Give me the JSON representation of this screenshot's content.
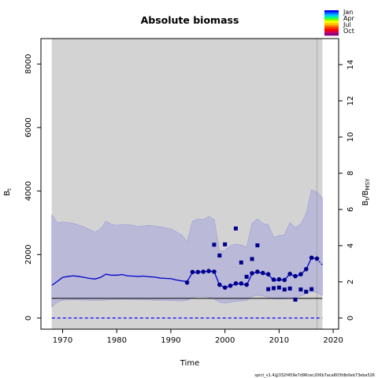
{
  "chart_data": {
    "type": "line",
    "title": "Absolute biomass",
    "xlabel": "Time",
    "ylabel_left": "B_t",
    "ylabel_left_main": "B",
    "ylabel_left_sub": "t",
    "ylabel_right": "B_t/B_MSY",
    "ylabel_right_main_1": "B",
    "ylabel_right_sub_1": "t",
    "ylabel_right_main_2": "/B",
    "ylabel_right_sub_2": "MSY",
    "xlim": [
      1966,
      2021
    ],
    "ylim_left": [
      -350,
      8800
    ],
    "ylim_right_ratio_per_unit": 570,
    "x_ticks": [
      1970,
      1980,
      1990,
      2000,
      2010,
      2020
    ],
    "y_ticks_left": [
      0,
      2000,
      4000,
      6000,
      8000
    ],
    "y_ticks_right": [
      0,
      2,
      4,
      6,
      8,
      10,
      12,
      14
    ],
    "shaded_region": {
      "from": 1968,
      "to": 2018,
      "color": "#d3d3d3"
    },
    "current_time_line": 2017,
    "confidence_band": {
      "x": [
        1968,
        1969,
        1970,
        1972,
        1974,
        1976,
        1977,
        1978,
        1979,
        1980,
        1982,
        1984,
        1986,
        1988,
        1990,
        1992,
        1993,
        1994,
        1995,
        1996,
        1997,
        1998,
        1999,
        2000,
        2001,
        2002,
        2003,
        2004,
        2005,
        2006,
        2007,
        2008,
        2009,
        2010,
        2011,
        2012,
        2013,
        2014,
        2015,
        2016,
        2017,
        2018
      ],
      "upper": [
        3250,
        3000,
        3030,
        2980,
        2870,
        2700,
        2800,
        3050,
        2950,
        2920,
        2950,
        2880,
        2920,
        2870,
        2810,
        2620,
        2400,
        3050,
        3120,
        3100,
        3200,
        3100,
        2100,
        2130,
        2280,
        2330,
        2300,
        2230,
        2980,
        3120,
        2980,
        2940,
        2540,
        2600,
        2620,
        3000,
        2850,
        2960,
        3280,
        4040,
        3960,
        3780
      ],
      "lower": [
        350,
        500,
        560,
        580,
        570,
        560,
        560,
        570,
        580,
        590,
        590,
        580,
        570,
        560,
        550,
        540,
        560,
        650,
        680,
        680,
        660,
        600,
        500,
        470,
        500,
        530,
        540,
        560,
        680,
        720,
        700,
        650,
        600,
        600,
        600,
        620,
        650,
        700,
        760,
        850,
        800,
        720
      ]
    },
    "series": [
      {
        "type": "line",
        "color": "#0000cd",
        "x": [
          1968,
          1969,
          1970,
          1971,
          1972,
          1973,
          1974,
          1975,
          1976,
          1977,
          1978,
          1979,
          1980,
          1981,
          1982,
          1983,
          1984,
          1985,
          1986,
          1987,
          1988,
          1989,
          1990,
          1991,
          1992,
          1993,
          1994,
          1995,
          1996,
          1997,
          1998,
          1999,
          2000,
          2001,
          2002,
          2003,
          2004,
          2005,
          2006,
          2007,
          2008,
          2009,
          2010,
          2011,
          2012,
          2013,
          2014,
          2015,
          2016,
          2017
        ],
        "y": [
          1030,
          1150,
          1280,
          1310,
          1330,
          1310,
          1280,
          1250,
          1230,
          1280,
          1380,
          1350,
          1350,
          1370,
          1330,
          1320,
          1310,
          1320,
          1300,
          1290,
          1260,
          1250,
          1240,
          1200,
          1170,
          1150,
          1430,
          1450,
          1450,
          1480,
          1460,
          1040,
          960,
          1010,
          1080,
          1080,
          1030,
          1400,
          1450,
          1400,
          1380,
          1180,
          1200,
          1200,
          1390,
          1300,
          1380,
          1530,
          1900,
          1860
        ]
      },
      {
        "type": "line",
        "color": "#0000cd",
        "style": "dotted",
        "x": [
          2017,
          2018
        ],
        "y": [
          1860,
          1670
        ]
      },
      {
        "type": "scatter",
        "color": "#00008b",
        "x": [
          1993,
          1994,
          1995,
          1996,
          1997,
          1998,
          1999,
          2000,
          2001,
          2002,
          2003,
          2004,
          2005,
          2006,
          2007,
          2008,
          2009,
          2010,
          2011,
          2012,
          2013,
          2014,
          2015,
          2016,
          2017
        ],
        "y": [
          1120,
          1450,
          1450,
          1460,
          1480,
          1460,
          1050,
          960,
          1020,
          1090,
          1090,
          1050,
          1410,
          1460,
          1420,
          1380,
          1210,
          1220,
          1200,
          1390,
          1320,
          1380,
          1540,
          1900,
          1870
        ]
      },
      {
        "type": "scatter",
        "color": "#00008b",
        "x": [
          1998,
          1999,
          2000,
          2002,
          2003,
          2004,
          2005,
          2006,
          2008,
          2009,
          2010,
          2011,
          2012,
          2013,
          2014,
          2015,
          2016
        ],
        "y": [
          2310,
          1970,
          2320,
          2820,
          1750,
          1300,
          1860,
          2290,
          910,
          940,
          960,
          900,
          930,
          580,
          900,
          830,
          910
        ]
      }
    ],
    "reference_lines": [
      {
        "name": "B_MSY",
        "y": 620,
        "color": "#000000",
        "style": "solid"
      },
      {
        "name": "zero",
        "y": 0,
        "color": "#0000ff",
        "style": "dashed"
      }
    ],
    "legend": {
      "position": "top-right",
      "labels": [
        "Jan",
        "Apr",
        "Jul",
        "Oct"
      ],
      "colors": [
        "#0000ff",
        "#0077ff",
        "#00c8ff",
        "#00ff80",
        "#7fff00",
        "#ffff00",
        "#ffc800",
        "#ff8000",
        "#ff3000",
        "#ff0000",
        "#c80060",
        "#8b0080"
      ]
    },
    "grid": false,
    "footer": "spict_v1.4@332f459e7d96cec206b7aca803fdb0eb73eba526"
  }
}
